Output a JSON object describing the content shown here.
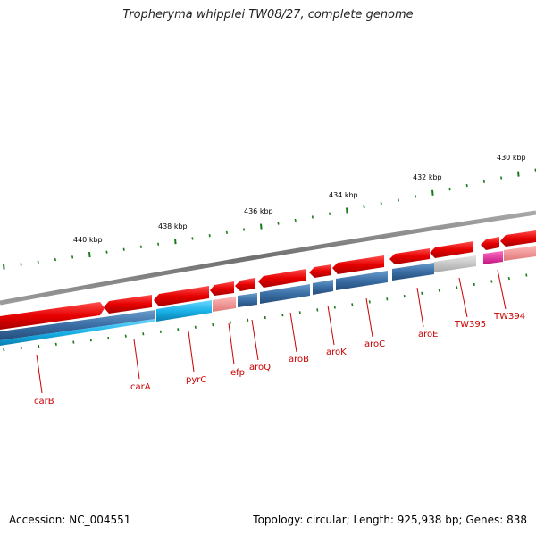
{
  "title": "Tropheryma whipplei TW08/27, complete genome",
  "footer": {
    "accession": "Accession: NC_004551",
    "summary": "Topology: circular; Length: 925,938 bp; Genes: 838"
  },
  "scale_labels": [
    "440 kbp",
    "438 kbp",
    "436 kbp",
    "434 kbp",
    "432 kbp",
    "430 kbp"
  ],
  "gene_labels": [
    "carB",
    "carA",
    "pyrC",
    "efp",
    "aroQ",
    "aroB",
    "aroK",
    "aroC",
    "aroE",
    "TW395",
    "TW394"
  ],
  "colors": {
    "backbone": "#808080",
    "forward_cds": "#e60000",
    "reverse_cds": "#3a6ea5",
    "cog_cyan": "#1ab2e8",
    "cog_pink": "#f09090",
    "cog_grey": "#c0c0c0",
    "cog_magenta": "#e62ea0",
    "gc_skew": "#1a7a1a",
    "label": "#cc0000"
  }
}
